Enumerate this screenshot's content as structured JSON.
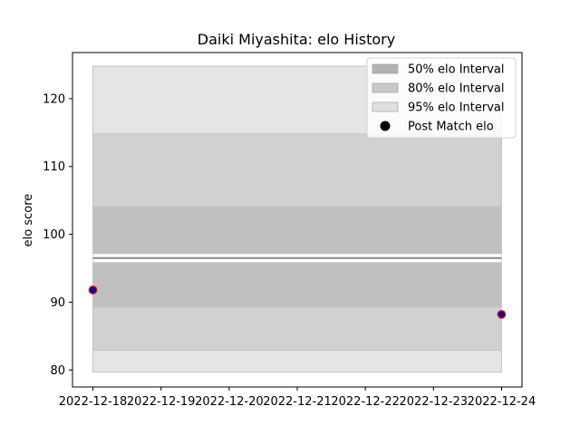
{
  "chart_data": {
    "type": "area",
    "title": "Daiki Miyashita: elo History",
    "xlabel": "",
    "ylabel": "elo score",
    "x_ticks": [
      "2022-12-18",
      "2022-12-19",
      "2022-12-20",
      "2022-12-21",
      "2022-12-22",
      "2022-12-23",
      "2022-12-24"
    ],
    "y_ticks": [
      80,
      90,
      100,
      110,
      120
    ],
    "xlim": [
      "2022-12-17.7",
      "2022-12-24.3"
    ],
    "ylim": [
      77.5,
      126.8
    ],
    "x_range": [
      "2022-12-18",
      "2022-12-24"
    ],
    "mean": 96.5,
    "bands": [
      {
        "name": "95% elo Interval",
        "low": 79.7,
        "high": 124.8,
        "color": "#e5e5e5"
      },
      {
        "name": "80% elo Interval",
        "low": 82.9,
        "high": 114.8,
        "color": "#d1d1d1"
      },
      {
        "name": "50% elo Interval",
        "low": 89.3,
        "high": 104.1,
        "color": "#c0c0c0"
      }
    ],
    "points": [
      {
        "x": "2022-12-18",
        "y": 91.8
      },
      {
        "x": "2022-12-24",
        "y": 88.2
      }
    ],
    "legend": {
      "position": "upper right",
      "entries": [
        {
          "label": "50% elo Interval",
          "kind": "patch",
          "color": "#b2b2b2"
        },
        {
          "label": "80% elo Interval",
          "kind": "patch",
          "color": "#c8c8c8"
        },
        {
          "label": "95% elo Interval",
          "kind": "patch",
          "color": "#e0e0e0"
        },
        {
          "label": "Post Match elo",
          "kind": "marker",
          "color": "#000000"
        }
      ]
    },
    "grid": false,
    "point_fill": "#0a0a8c",
    "point_edge": "#e8001c"
  }
}
